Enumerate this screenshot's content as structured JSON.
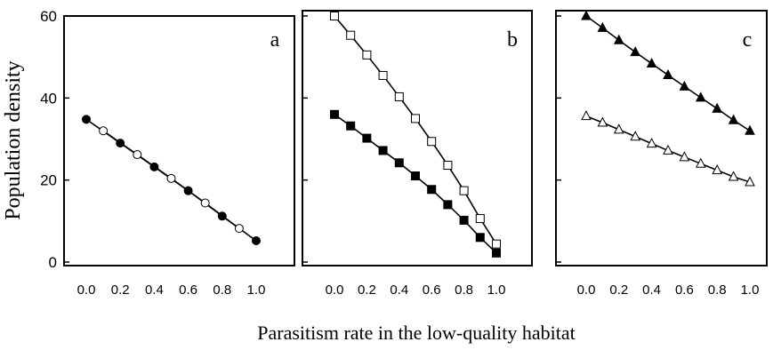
{
  "chart_data": [
    {
      "type": "line",
      "panel_label": "a",
      "ylabel": "Population density",
      "xlim": [
        0,
        1
      ],
      "ylim": [
        0,
        60
      ],
      "xticks": [
        "0.0",
        "0.2",
        "0.4",
        "0.6",
        "0.8",
        "1.0"
      ],
      "yticks": [
        "0",
        "20",
        "40",
        "60"
      ],
      "grid": false,
      "series": [
        {
          "marker": "filled-circle",
          "x": [
            0.0,
            0.2,
            0.4,
            0.6,
            0.8,
            1.0
          ],
          "y": [
            34.8,
            29.0,
            23.2,
            17.4,
            11.2,
            5.2
          ]
        },
        {
          "marker": "open-circle",
          "x": [
            0.1,
            0.3,
            0.5,
            0.7,
            0.9
          ],
          "y": [
            32.0,
            26.2,
            20.4,
            14.4,
            8.2
          ]
        }
      ]
    },
    {
      "type": "line",
      "panel_label": "b",
      "xlim": [
        0,
        1
      ],
      "ylim": [
        0,
        60
      ],
      "xticks": [
        "0.0",
        "0.2",
        "0.4",
        "0.6",
        "0.8",
        "1.0"
      ],
      "grid": false,
      "series": [
        {
          "marker": "open-square",
          "x": [
            0.0,
            0.1,
            0.2,
            0.3,
            0.4,
            0.5,
            0.6,
            0.7,
            0.8,
            0.9,
            1.0
          ],
          "y": [
            60.0,
            55.3,
            50.5,
            45.5,
            40.3,
            35.0,
            29.4,
            23.6,
            17.4,
            10.6,
            4.4
          ]
        },
        {
          "marker": "filled-square",
          "x": [
            0.0,
            0.1,
            0.2,
            0.3,
            0.4,
            0.5,
            0.6,
            0.7,
            0.8,
            0.9,
            1.0
          ],
          "y": [
            36.0,
            33.2,
            30.2,
            27.2,
            24.2,
            21.0,
            17.7,
            14.0,
            10.2,
            6.0,
            2.2
          ]
        }
      ]
    },
    {
      "type": "line",
      "panel_label": "c",
      "xlim": [
        0,
        1
      ],
      "ylim": [
        0,
        60
      ],
      "xticks": [
        "0.0",
        "0.2",
        "0.4",
        "0.6",
        "0.8",
        "1.0"
      ],
      "grid": false,
      "series": [
        {
          "marker": "filled-triangle",
          "x": [
            0.0,
            0.1,
            0.2,
            0.3,
            0.4,
            0.5,
            0.6,
            0.7,
            0.8,
            0.9,
            1.0
          ],
          "y": [
            60.0,
            57.1,
            54.1,
            51.2,
            48.4,
            45.6,
            42.8,
            40.1,
            37.4,
            34.6,
            32.0
          ]
        },
        {
          "marker": "open-triangle",
          "x": [
            0.0,
            0.1,
            0.2,
            0.3,
            0.4,
            0.5,
            0.6,
            0.7,
            0.8,
            0.9,
            1.0
          ],
          "y": [
            35.6,
            34.0,
            32.3,
            30.6,
            28.9,
            27.2,
            25.6,
            24.0,
            22.4,
            20.8,
            19.5
          ]
        }
      ]
    }
  ],
  "xlabel": "Parasitism rate in the low-quality habitat"
}
